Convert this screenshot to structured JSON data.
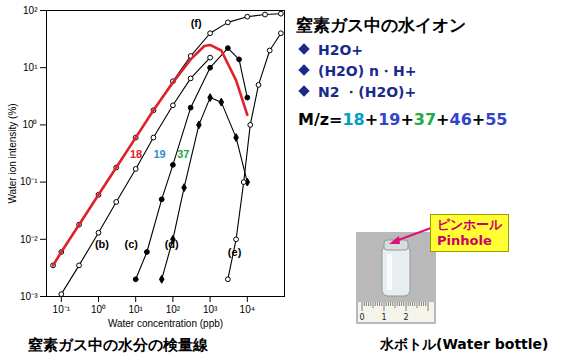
{
  "chart_data": {
    "type": "line",
    "log": true,
    "grid": false,
    "xlabel": "Water concentration (ppb)",
    "ylabel": "Water ion intensity (%)",
    "xlim": [
      0.04,
      100000
    ],
    "xticks": [
      {
        "value": 0.1,
        "label": "10⁻¹"
      },
      {
        "value": 1,
        "label": "10⁰"
      },
      {
        "value": 10,
        "label": "10¹"
      },
      {
        "value": 100,
        "label": "10²"
      },
      {
        "value": 1000,
        "label": "10³"
      },
      {
        "value": 10000,
        "label": "10⁴"
      }
    ],
    "ylim": [
      0.001,
      100
    ],
    "yticks": [
      {
        "value": 0.001,
        "label": "10⁻³"
      },
      {
        "value": 0.01,
        "label": "10⁻²"
      },
      {
        "value": 0.1,
        "label": "10⁻¹"
      },
      {
        "value": 1,
        "label": "10⁰"
      },
      {
        "value": 10,
        "label": "10¹"
      },
      {
        "value": 100,
        "label": "10²"
      }
    ],
    "caption": "窒素ガス中の水分の検量線",
    "series": [
      {
        "name": "(f)",
        "color": "#000000",
        "marker": "open_circle",
        "line_style": "solid",
        "x": [
          0.06,
          0.1,
          0.3,
          1,
          3,
          10,
          30,
          100,
          300,
          1000,
          3000,
          10000,
          30000,
          80000
        ],
        "values": [
          0.0035,
          0.006,
          0.018,
          0.06,
          0.18,
          0.6,
          1.8,
          5.8,
          16,
          40,
          62,
          78,
          85,
          88
        ]
      },
      {
        "name": "(b)",
        "color": "#000000",
        "marker": "open_circle",
        "line_style": "solid",
        "x": [
          0.1,
          0.3,
          1,
          3,
          10,
          30,
          100,
          300,
          1000
        ],
        "values": [
          0.0011,
          0.0035,
          0.013,
          0.045,
          0.17,
          0.6,
          2.2,
          6.5,
          15
        ]
      },
      {
        "name": "(c)",
        "color": "#000000",
        "marker": "filled_circle",
        "line_style": "solid",
        "x": [
          10,
          20,
          50,
          100,
          300,
          1000,
          3000,
          6000,
          10000
        ],
        "values": [
          0.002,
          0.006,
          0.05,
          0.2,
          2,
          10,
          22,
          14,
          3
        ]
      },
      {
        "name": "(d)",
        "color": "#000000",
        "marker": "filled_diamond",
        "line_style": "solid",
        "x": [
          50,
          100,
          200,
          500,
          1000,
          2000,
          5000,
          10000
        ],
        "values": [
          0.002,
          0.01,
          0.08,
          1,
          3,
          2.5,
          0.6,
          0.1
        ]
      },
      {
        "name": "(e)",
        "color": "#000000",
        "marker": "open_circle",
        "line_style": "solid",
        "x": [
          3000,
          5000,
          8000,
          12000,
          20000,
          40000,
          80000
        ],
        "values": [
          0.002,
          0.01,
          0.1,
          1,
          5,
          20,
          40
        ]
      },
      {
        "name": "18",
        "color": "#e0202a",
        "marker": "none",
        "line_style": "thick",
        "x": [
          0.06,
          0.1,
          0.3,
          1,
          3,
          10,
          30,
          100,
          300,
          700,
          1000,
          2000,
          5000,
          10000
        ],
        "values": [
          0.0035,
          0.006,
          0.018,
          0.06,
          0.18,
          0.6,
          1.8,
          5.5,
          14,
          24,
          25,
          20,
          6,
          1.5
        ]
      }
    ],
    "annotations": [
      {
        "text": "(f)",
        "x": 300,
        "y": 60,
        "color": "#000000"
      },
      {
        "text": "(b)",
        "x": 0.8,
        "y": 0.008,
        "color": "#000000"
      },
      {
        "text": "(c)",
        "x": 5,
        "y": 0.008,
        "color": "#000000"
      },
      {
        "text": "(d)",
        "x": 60,
        "y": 0.008,
        "color": "#000000"
      },
      {
        "text": "(e)",
        "x": 3000,
        "y": 0.006,
        "color": "#000000"
      },
      {
        "text": "18",
        "x": 7,
        "y": 0.3,
        "color": "#e0202a"
      },
      {
        "text": "19",
        "x": 30,
        "y": 0.3,
        "color": "#2a8fd0"
      },
      {
        "text": "37",
        "x": 130,
        "y": 0.3,
        "color": "#1fa040"
      }
    ]
  },
  "side_panel": {
    "title": "窒素ガス中の水イオン",
    "bullets": [
      "H2O+",
      "(H2O) n・H+",
      "N2 ・(H2O)+"
    ],
    "color": "#1a2a8a",
    "formula": [
      {
        "text": "M/z=",
        "color": "#000000"
      },
      {
        "text": "18",
        "color": "#00a0c0"
      },
      {
        "text": "+",
        "color": "#000000"
      },
      {
        "text": "19",
        "color": "#3344cc"
      },
      {
        "text": "+",
        "color": "#000000"
      },
      {
        "text": "37",
        "color": "#22aa44"
      },
      {
        "text": "+",
        "color": "#000000"
      },
      {
        "text": "46",
        "color": "#3344cc"
      },
      {
        "text": "+",
        "color": "#000000"
      },
      {
        "text": "55",
        "color": "#3344cc"
      }
    ],
    "photo": {
      "callout": [
        "ピンホール",
        "Pinhole"
      ],
      "ruler_labels": [
        "0",
        "1",
        "2"
      ],
      "caption": "水ボトル(Water bottle)"
    }
  }
}
